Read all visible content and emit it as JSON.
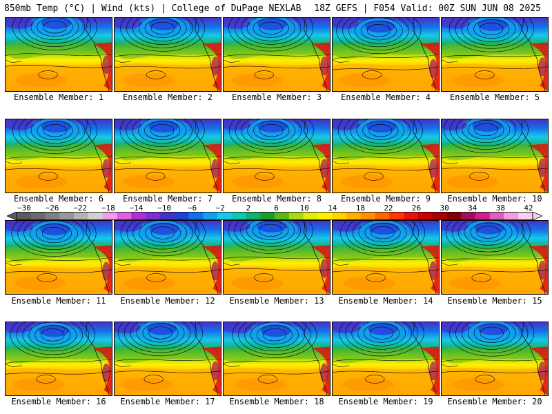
{
  "header": {
    "left_title": "850mb Temp (°C) | Wind (kts) | College of DuPage NEXLAB",
    "right_title": "18Z GEFS | F054 Valid: 00Z SUN JUN 08 2025"
  },
  "members": [
    "Ensemble Member: 1",
    "Ensemble Member: 2",
    "Ensemble Member: 3",
    "Ensemble Member: 4",
    "Ensemble Member: 5",
    "Ensemble Member: 6",
    "Ensemble Member: 7",
    "Ensemble Member: 8",
    "Ensemble Member: 9",
    "Ensemble Member: 10",
    "Ensemble Member: 11",
    "Ensemble Member: 12",
    "Ensemble Member: 13",
    "Ensemble Member: 14",
    "Ensemble Member: 15",
    "Ensemble Member: 16",
    "Ensemble Member: 17",
    "Ensemble Member: 18",
    "Ensemble Member: 19",
    "Ensemble Member: 20"
  ],
  "colorbar": {
    "ticks": [
      "−30",
      "−26",
      "−22",
      "−18",
      "−14",
      "−10",
      "−6",
      "−2",
      "2",
      "6",
      "10",
      "14",
      "18",
      "22",
      "26",
      "30",
      "34",
      "38",
      "42"
    ],
    "colors": [
      "#5b5b5b",
      "#6b6b6b",
      "#808080",
      "#989898",
      "#b4b4b4",
      "#d2d2d2",
      "#f49bf0",
      "#e060e0",
      "#b030d8",
      "#7a2fd0",
      "#4632c8",
      "#2040d8",
      "#1470e8",
      "#12a0f0",
      "#18c8e8",
      "#10c8b0",
      "#10b070",
      "#1e9a30",
      "#5cb818",
      "#a8d818",
      "#e0ee10",
      "#fff000",
      "#ffd200",
      "#ffb000",
      "#ff9000",
      "#ff6800",
      "#ff3800",
      "#ee1010",
      "#cc0000",
      "#a80000",
      "#800000",
      "#a01060",
      "#cc2090",
      "#e060c0",
      "#f0a0e0",
      "#f8d0f0"
    ]
  }
}
